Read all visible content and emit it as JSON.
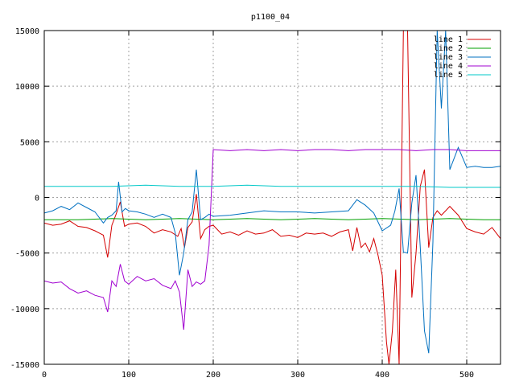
{
  "chart_data": {
    "type": "line",
    "title": "p1100_04",
    "xlabel": "",
    "ylabel": "",
    "xlim": [
      0,
      540
    ],
    "ylim": [
      -15000,
      15000
    ],
    "xticks": [
      0,
      100,
      200,
      300,
      400,
      500
    ],
    "yticks": [
      -15000,
      -10000,
      -5000,
      0,
      5000,
      10000,
      15000
    ],
    "grid": true,
    "legend_position": "top-right",
    "series": [
      {
        "name": "line 1",
        "color": "#d40000",
        "x": [
          0,
          10,
          20,
          30,
          40,
          50,
          60,
          65,
          70,
          75,
          80,
          85,
          90,
          95,
          100,
          110,
          120,
          130,
          140,
          150,
          158,
          162,
          166,
          170,
          175,
          180,
          185,
          190,
          195,
          200,
          210,
          220,
          230,
          240,
          250,
          260,
          270,
          280,
          290,
          300,
          310,
          320,
          330,
          340,
          350,
          360,
          365,
          370,
          375,
          380,
          385,
          390,
          395,
          400,
          405,
          408,
          412,
          416,
          420,
          425,
          430,
          435,
          440,
          445,
          450,
          455,
          460,
          465,
          470,
          475,
          480,
          490,
          500,
          510,
          520,
          530,
          540
        ],
        "y": [
          -2300,
          -2500,
          -2400,
          -2100,
          -2600,
          -2700,
          -3000,
          -3200,
          -3400,
          -5400,
          -2500,
          -1500,
          -400,
          -2600,
          -2400,
          -2300,
          -2600,
          -3200,
          -2900,
          -3100,
          -3500,
          -2800,
          -4500,
          -2700,
          -2200,
          300,
          -3700,
          -2900,
          -2600,
          -2500,
          -3300,
          -3100,
          -3400,
          -3000,
          -3300,
          -3200,
          -2900,
          -3500,
          -3400,
          -3600,
          -3200,
          -3300,
          -3200,
          -3500,
          -3100,
          -2900,
          -4800,
          -2700,
          -4500,
          -4100,
          -4900,
          -3700,
          -5200,
          -7000,
          -13000,
          -15000,
          -12000,
          -6500,
          -15000,
          15000,
          15000,
          -9000,
          -5000,
          1000,
          2500,
          -4500,
          -1800,
          -1200,
          -1600,
          -1200,
          -800,
          -1600,
          -2800,
          -3100,
          -3300,
          -2700,
          -3700
        ]
      },
      {
        "name": "line 2",
        "color": "#00a000",
        "x": [
          0,
          40,
          80,
          120,
          160,
          200,
          240,
          280,
          320,
          360,
          400,
          440,
          480,
          520,
          540
        ],
        "y": [
          -2000,
          -2000,
          -1900,
          -2000,
          -1900,
          -2000,
          -1900,
          -2000,
          -1900,
          -2000,
          -1900,
          -2000,
          -1900,
          -2000,
          -2000
        ],
        "values": [
          -2000,
          -2000,
          -1900,
          -2000,
          -1900,
          -2000,
          -1900,
          -2000,
          -1900,
          -2000,
          -1900,
          -2000,
          -1900,
          -2000,
          -2000
        ]
      },
      {
        "name": "line 3",
        "color": "#0070c0",
        "x": [
          0,
          10,
          20,
          30,
          40,
          50,
          60,
          70,
          75,
          80,
          85,
          88,
          92,
          96,
          100,
          110,
          120,
          130,
          140,
          150,
          155,
          160,
          165,
          170,
          175,
          180,
          185,
          190,
          195,
          200,
          220,
          240,
          260,
          280,
          300,
          320,
          340,
          360,
          370,
          380,
          390,
          400,
          410,
          415,
          420,
          425,
          430,
          435,
          440,
          445,
          450,
          455,
          460,
          465,
          470,
          475,
          480,
          490,
          500,
          510,
          520,
          530,
          540
        ],
        "y": [
          -1400,
          -1200,
          -800,
          -1100,
          -500,
          -900,
          -1300,
          -2300,
          -1800,
          -1600,
          -1200,
          1400,
          -1300,
          -1000,
          -1200,
          -1300,
          -1500,
          -1800,
          -1500,
          -1800,
          -3200,
          -7000,
          -5000,
          -2000,
          -1300,
          2500,
          -2000,
          -1800,
          -1500,
          -1700,
          -1600,
          -1400,
          -1200,
          -1300,
          -1300,
          -1400,
          -1300,
          -1200,
          -200,
          -700,
          -1400,
          -3000,
          -2500,
          -1200,
          800,
          -4900,
          -5000,
          -500,
          2000,
          -4500,
          -12000,
          -14000,
          -4000,
          15000,
          8000,
          15000,
          2500,
          4500,
          2700,
          2800,
          2700,
          2700,
          2800
        ]
      },
      {
        "name": "line 4",
        "color": "#a000d0",
        "x": [
          0,
          10,
          20,
          30,
          40,
          50,
          60,
          70,
          75,
          80,
          85,
          90,
          95,
          100,
          110,
          120,
          130,
          140,
          150,
          155,
          160,
          165,
          170,
          175,
          180,
          185,
          190,
          195,
          200,
          220,
          240,
          260,
          280,
          300,
          320,
          340,
          360,
          380,
          400,
          420,
          440,
          460,
          480,
          500,
          520,
          540
        ],
        "y": [
          -7500,
          -7700,
          -7600,
          -8200,
          -8600,
          -8400,
          -8800,
          -9000,
          -10300,
          -7500,
          -8000,
          -6000,
          -7500,
          -7800,
          -7100,
          -7500,
          -7300,
          -7900,
          -8200,
          -7500,
          -8500,
          -11900,
          -6500,
          -8000,
          -7600,
          -7800,
          -7500,
          -4300,
          4300,
          4200,
          4300,
          4200,
          4300,
          4200,
          4300,
          4300,
          4200,
          4300,
          4300,
          4300,
          4200,
          4300,
          4300,
          4200,
          4200,
          4200
        ]
      },
      {
        "name": "line 5",
        "color": "#00c8c8",
        "x": [
          0,
          40,
          80,
          120,
          160,
          200,
          240,
          280,
          320,
          360,
          400,
          440,
          480,
          500,
          520,
          540
        ],
        "y": [
          1000,
          1000,
          1000,
          1100,
          1000,
          1000,
          1100,
          1000,
          1000,
          1000,
          1000,
          1000,
          900,
          900,
          900,
          900
        ]
      }
    ]
  }
}
